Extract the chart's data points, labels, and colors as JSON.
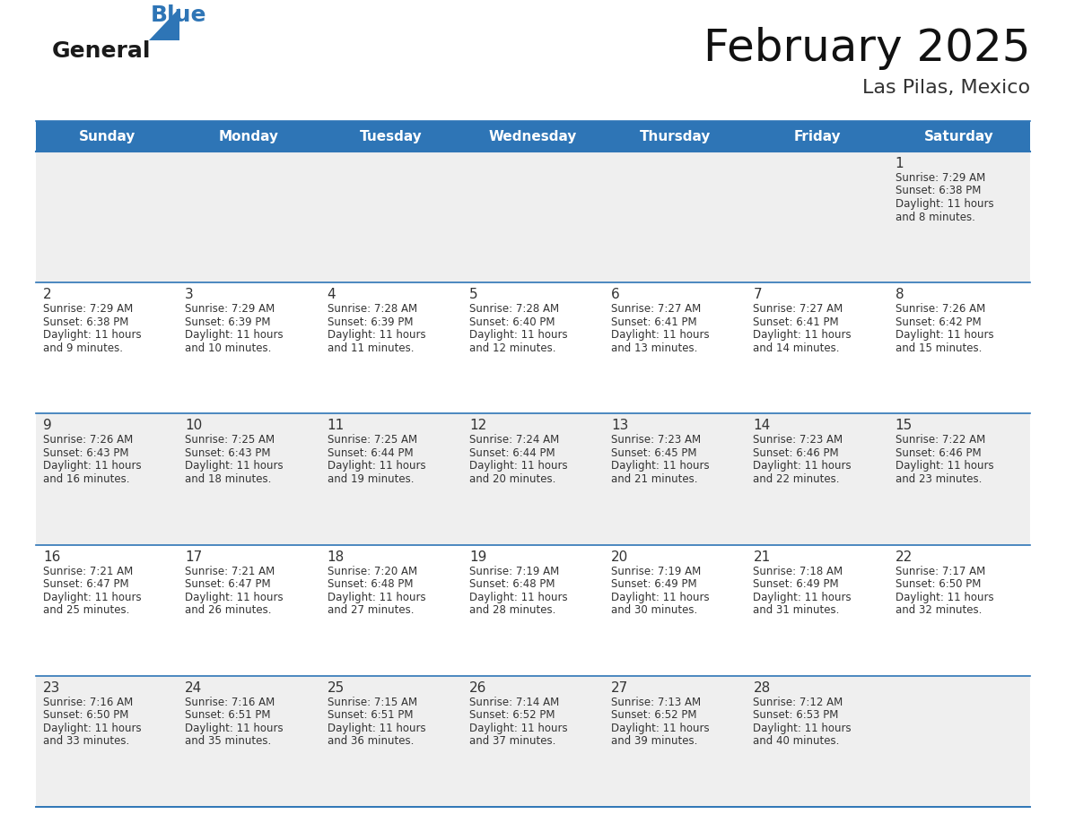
{
  "title": "February 2025",
  "subtitle": "Las Pilas, Mexico",
  "header_bg_color": "#2E75B6",
  "header_text_color": "#FFFFFF",
  "cell_bg_row0": "#EFEFEF",
  "cell_bg_row1": "#FFFFFF",
  "border_color": "#2E75B6",
  "day_number_color": "#333333",
  "cell_text_color": "#333333",
  "days_of_week": [
    "Sunday",
    "Monday",
    "Tuesday",
    "Wednesday",
    "Thursday",
    "Friday",
    "Saturday"
  ],
  "calendar": [
    [
      null,
      null,
      null,
      null,
      null,
      null,
      {
        "day": "1",
        "sunrise": "7:29 AM",
        "sunset": "6:38 PM",
        "daylight_line1": "Daylight: 11 hours",
        "daylight_line2": "and 8 minutes."
      }
    ],
    [
      {
        "day": "2",
        "sunrise": "7:29 AM",
        "sunset": "6:38 PM",
        "daylight_line1": "Daylight: 11 hours",
        "daylight_line2": "and 9 minutes."
      },
      {
        "day": "3",
        "sunrise": "7:29 AM",
        "sunset": "6:39 PM",
        "daylight_line1": "Daylight: 11 hours",
        "daylight_line2": "and 10 minutes."
      },
      {
        "day": "4",
        "sunrise": "7:28 AM",
        "sunset": "6:39 PM",
        "daylight_line1": "Daylight: 11 hours",
        "daylight_line2": "and 11 minutes."
      },
      {
        "day": "5",
        "sunrise": "7:28 AM",
        "sunset": "6:40 PM",
        "daylight_line1": "Daylight: 11 hours",
        "daylight_line2": "and 12 minutes."
      },
      {
        "day": "6",
        "sunrise": "7:27 AM",
        "sunset": "6:41 PM",
        "daylight_line1": "Daylight: 11 hours",
        "daylight_line2": "and 13 minutes."
      },
      {
        "day": "7",
        "sunrise": "7:27 AM",
        "sunset": "6:41 PM",
        "daylight_line1": "Daylight: 11 hours",
        "daylight_line2": "and 14 minutes."
      },
      {
        "day": "8",
        "sunrise": "7:26 AM",
        "sunset": "6:42 PM",
        "daylight_line1": "Daylight: 11 hours",
        "daylight_line2": "and 15 minutes."
      }
    ],
    [
      {
        "day": "9",
        "sunrise": "7:26 AM",
        "sunset": "6:43 PM",
        "daylight_line1": "Daylight: 11 hours",
        "daylight_line2": "and 16 minutes."
      },
      {
        "day": "10",
        "sunrise": "7:25 AM",
        "sunset": "6:43 PM",
        "daylight_line1": "Daylight: 11 hours",
        "daylight_line2": "and 18 minutes."
      },
      {
        "day": "11",
        "sunrise": "7:25 AM",
        "sunset": "6:44 PM",
        "daylight_line1": "Daylight: 11 hours",
        "daylight_line2": "and 19 minutes."
      },
      {
        "day": "12",
        "sunrise": "7:24 AM",
        "sunset": "6:44 PM",
        "daylight_line1": "Daylight: 11 hours",
        "daylight_line2": "and 20 minutes."
      },
      {
        "day": "13",
        "sunrise": "7:23 AM",
        "sunset": "6:45 PM",
        "daylight_line1": "Daylight: 11 hours",
        "daylight_line2": "and 21 minutes."
      },
      {
        "day": "14",
        "sunrise": "7:23 AM",
        "sunset": "6:46 PM",
        "daylight_line1": "Daylight: 11 hours",
        "daylight_line2": "and 22 minutes."
      },
      {
        "day": "15",
        "sunrise": "7:22 AM",
        "sunset": "6:46 PM",
        "daylight_line1": "Daylight: 11 hours",
        "daylight_line2": "and 23 minutes."
      }
    ],
    [
      {
        "day": "16",
        "sunrise": "7:21 AM",
        "sunset": "6:47 PM",
        "daylight_line1": "Daylight: 11 hours",
        "daylight_line2": "and 25 minutes."
      },
      {
        "day": "17",
        "sunrise": "7:21 AM",
        "sunset": "6:47 PM",
        "daylight_line1": "Daylight: 11 hours",
        "daylight_line2": "and 26 minutes."
      },
      {
        "day": "18",
        "sunrise": "7:20 AM",
        "sunset": "6:48 PM",
        "daylight_line1": "Daylight: 11 hours",
        "daylight_line2": "and 27 minutes."
      },
      {
        "day": "19",
        "sunrise": "7:19 AM",
        "sunset": "6:48 PM",
        "daylight_line1": "Daylight: 11 hours",
        "daylight_line2": "and 28 minutes."
      },
      {
        "day": "20",
        "sunrise": "7:19 AM",
        "sunset": "6:49 PM",
        "daylight_line1": "Daylight: 11 hours",
        "daylight_line2": "and 30 minutes."
      },
      {
        "day": "21",
        "sunrise": "7:18 AM",
        "sunset": "6:49 PM",
        "daylight_line1": "Daylight: 11 hours",
        "daylight_line2": "and 31 minutes."
      },
      {
        "day": "22",
        "sunrise": "7:17 AM",
        "sunset": "6:50 PM",
        "daylight_line1": "Daylight: 11 hours",
        "daylight_line2": "and 32 minutes."
      }
    ],
    [
      {
        "day": "23",
        "sunrise": "7:16 AM",
        "sunset": "6:50 PM",
        "daylight_line1": "Daylight: 11 hours",
        "daylight_line2": "and 33 minutes."
      },
      {
        "day": "24",
        "sunrise": "7:16 AM",
        "sunset": "6:51 PM",
        "daylight_line1": "Daylight: 11 hours",
        "daylight_line2": "and 35 minutes."
      },
      {
        "day": "25",
        "sunrise": "7:15 AM",
        "sunset": "6:51 PM",
        "daylight_line1": "Daylight: 11 hours",
        "daylight_line2": "and 36 minutes."
      },
      {
        "day": "26",
        "sunrise": "7:14 AM",
        "sunset": "6:52 PM",
        "daylight_line1": "Daylight: 11 hours",
        "daylight_line2": "and 37 minutes."
      },
      {
        "day": "27",
        "sunrise": "7:13 AM",
        "sunset": "6:52 PM",
        "daylight_line1": "Daylight: 11 hours",
        "daylight_line2": "and 39 minutes."
      },
      {
        "day": "28",
        "sunrise": "7:12 AM",
        "sunset": "6:53 PM",
        "daylight_line1": "Daylight: 11 hours",
        "daylight_line2": "and 40 minutes."
      },
      null
    ]
  ]
}
